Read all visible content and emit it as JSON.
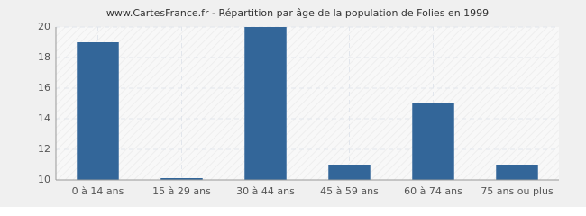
{
  "chart_data": {
    "type": "bar",
    "title": "www.CartesFrance.fr - Répartition par âge de la population de Folies en 1999",
    "categories": [
      "0 à 14 ans",
      "15 à 29 ans",
      "30 à 44 ans",
      "45 à 59 ans",
      "60 à 74 ans",
      "75 ans ou plus"
    ],
    "values": [
      19,
      10,
      20,
      11,
      15,
      11
    ],
    "color": "#336699",
    "ylim": [
      10,
      20
    ],
    "yticks": [
      10,
      12,
      14,
      16,
      18,
      20
    ],
    "grid": true
  }
}
